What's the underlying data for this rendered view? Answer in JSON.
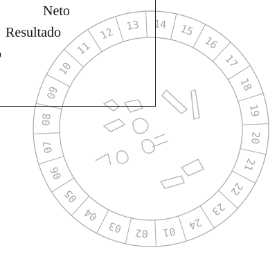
{
  "document": {
    "lines": [
      "Neto",
      "Resultado",
      "o"
    ]
  },
  "stamp": {
    "ticks": [
      "13",
      "14",
      "15",
      "16",
      "17",
      "18",
      "19",
      "20",
      "21",
      "22",
      "23",
      "24",
      "01",
      "02",
      "03",
      "04",
      "05",
      "06",
      "07",
      "08",
      "09",
      "10",
      "11",
      "12"
    ],
    "ink_color": "#a8a8a8"
  }
}
